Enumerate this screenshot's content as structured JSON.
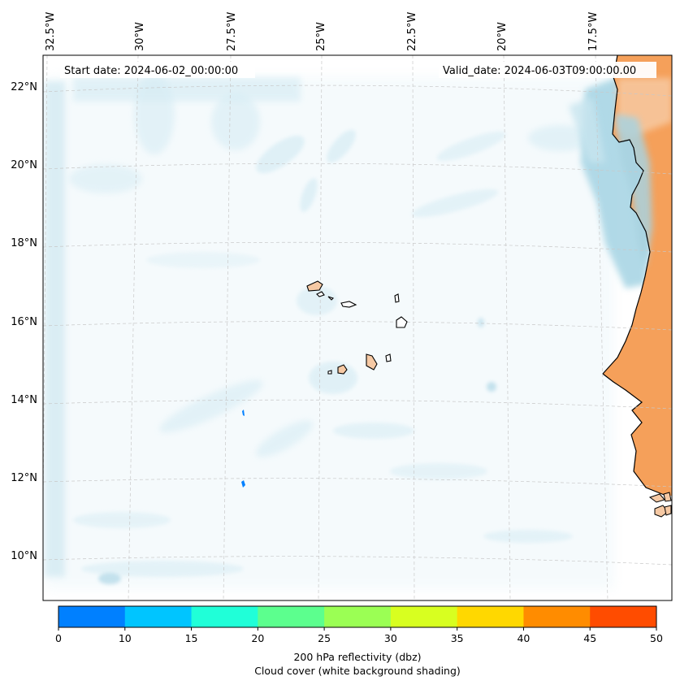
{
  "map": {
    "start_date_label": "Start date: 2024-06-02_00:00:00",
    "valid_date_label": "Valid_date: 2024-06-03T09:00:00.00",
    "lon_labels": [
      "32.5°W",
      "30°W",
      "27.5°W",
      "25°W",
      "22.5°W",
      "20°W",
      "17.5°W"
    ],
    "lat_labels": [
      "22°N",
      "20°N",
      "18°N",
      "16°N",
      "14°N",
      "12°N",
      "10°N"
    ],
    "land_color": "#f5a05a",
    "island_fill": "#f6c9a4",
    "cloud_color": "#add8e6",
    "reflectivity_cells_dbz": [
      5,
      5
    ]
  },
  "colorbar": {
    "ticks": [
      "0",
      "10",
      "15",
      "20",
      "25",
      "30",
      "35",
      "40",
      "45",
      "50"
    ],
    "colors": [
      "#0080ff",
      "#00c5ff",
      "#20ffd8",
      "#5cff8e",
      "#9bff54",
      "#d8ff20",
      "#ffd800",
      "#ff8c00",
      "#ff4c00"
    ],
    "label_line1": "200 hPa reflectivity (dbz)",
    "label_line2": "Cloud cover (white background shading)"
  }
}
